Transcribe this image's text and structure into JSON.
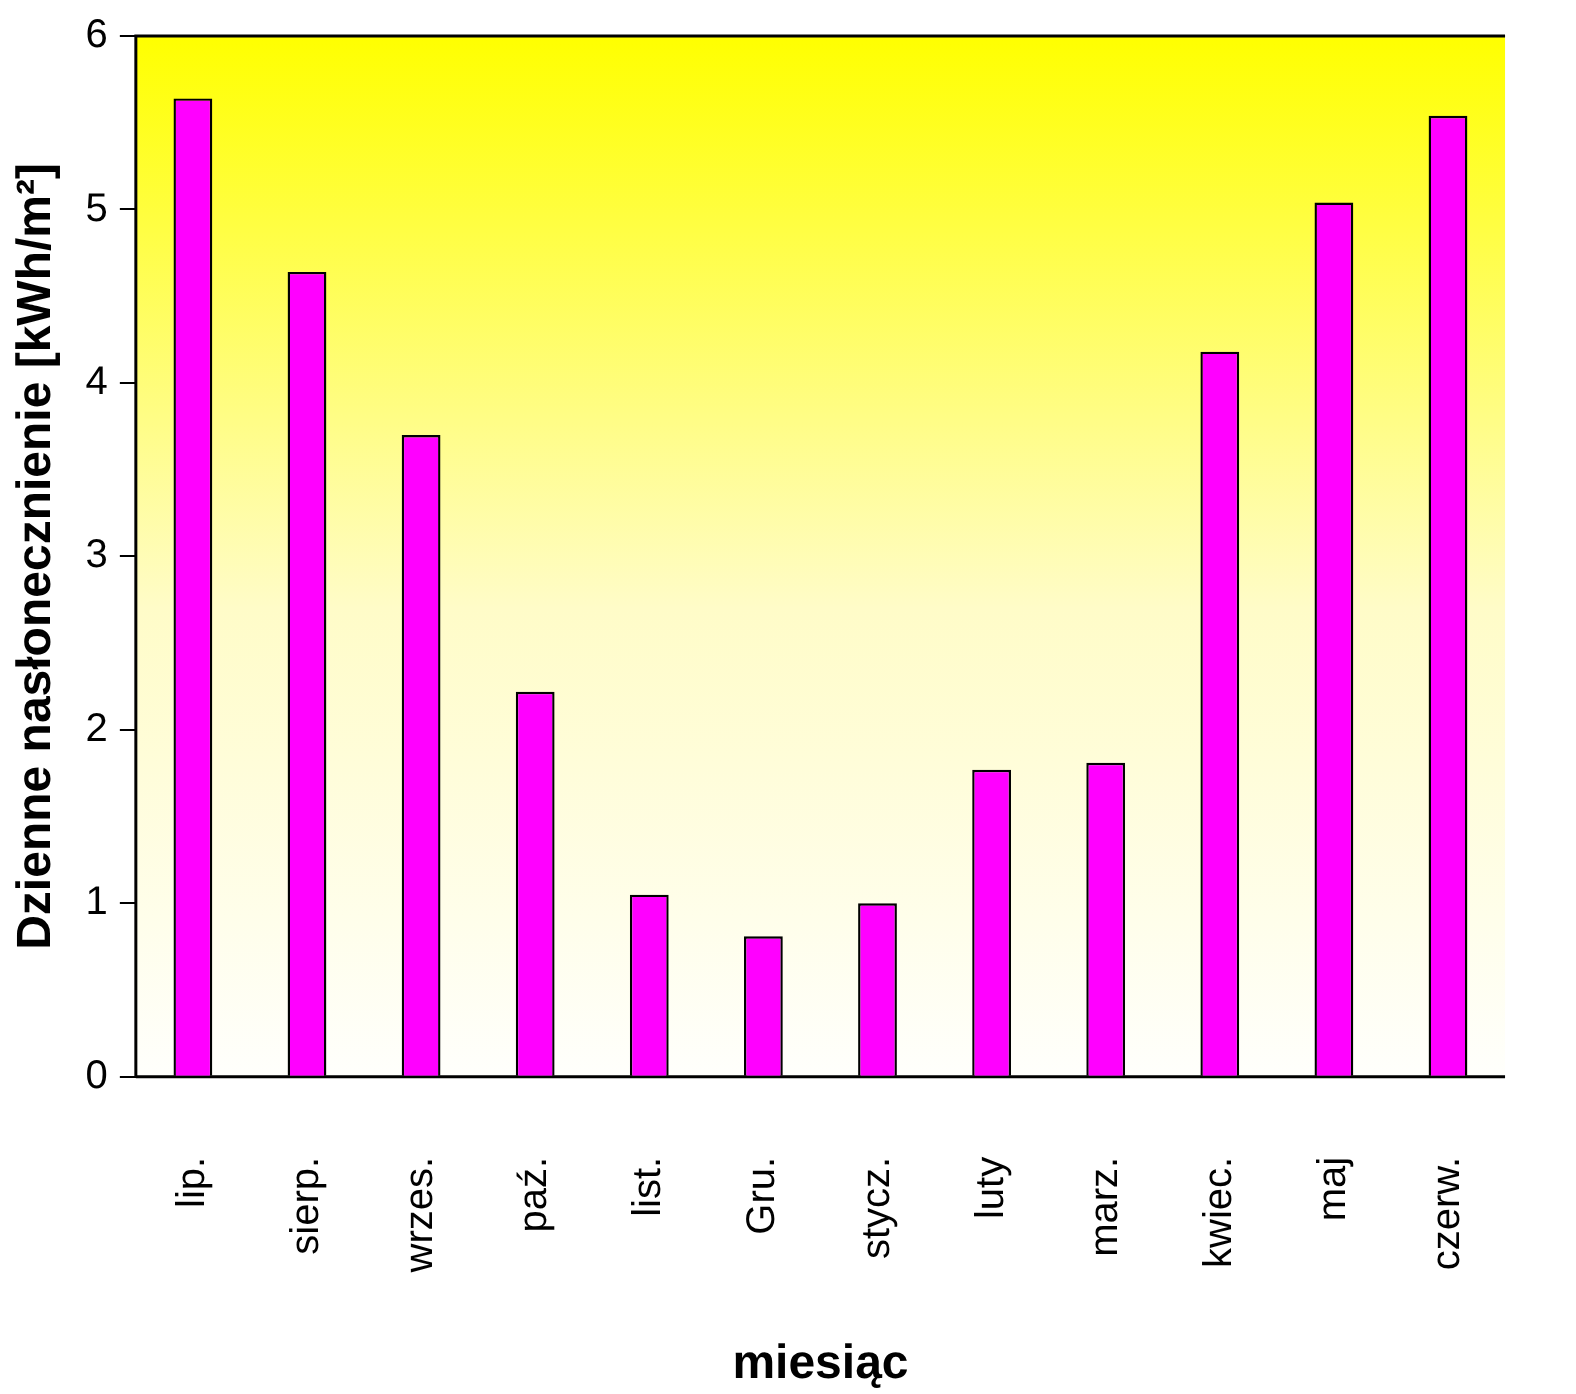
{
  "chart_data": {
    "type": "bar",
    "xlabel": "miesiąc",
    "ylabel": "Dzienne nasłonecznienie [kWh/m²]",
    "categories": [
      "lip.",
      "sierp.",
      "wrzes.",
      "paź.",
      "list.",
      "Gru.",
      "stycz.",
      "luty",
      "marz.",
      "kwiec.",
      "maj",
      "czerw."
    ],
    "values": [
      5.64,
      4.64,
      3.7,
      2.22,
      1.05,
      0.81,
      1.0,
      1.77,
      1.81,
      4.18,
      5.04,
      5.54
    ],
    "color": "#ff00ff",
    "ylim": [
      0,
      6
    ],
    "yticks": [
      0,
      1,
      2,
      3,
      4,
      5,
      6
    ],
    "grid": false,
    "legend": false
  }
}
